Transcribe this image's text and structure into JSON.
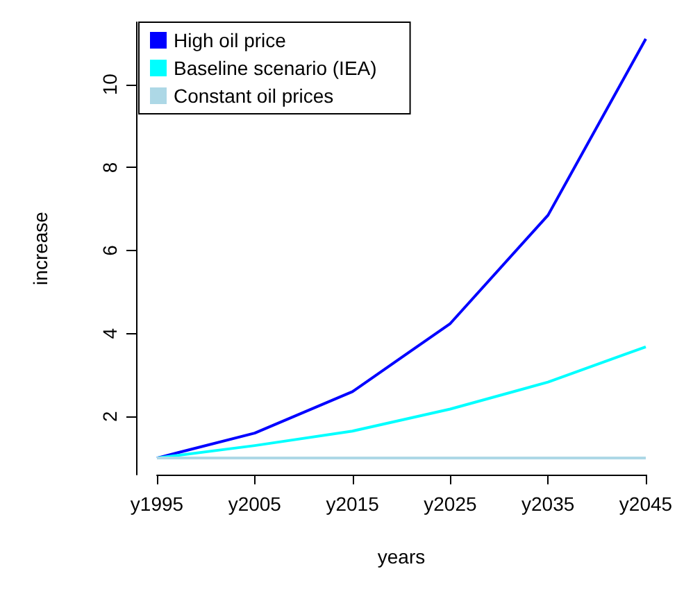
{
  "chart_data": {
    "type": "line",
    "xlabel": "years",
    "ylabel": "increase",
    "categories": [
      "y1995",
      "y2005",
      "y2015",
      "y2025",
      "y2035",
      "y2045"
    ],
    "series": [
      {
        "name": "High oil price",
        "color": "#0000ff",
        "values": [
          1,
          1.6,
          2.6,
          4.24,
          6.85,
          11.1
        ]
      },
      {
        "name": "Baseline scenario (IEA)",
        "color": "#00ffff",
        "values": [
          1,
          1.3,
          1.65,
          2.18,
          2.83,
          3.68
        ]
      },
      {
        "name": "Constant oil prices",
        "color": "#add8e6",
        "values": [
          1,
          1,
          1,
          1,
          1,
          1
        ]
      }
    ],
    "ylim": [
      0.6,
      11.5
    ],
    "yticks": [
      2,
      4,
      6,
      8,
      10
    ],
    "grid": false,
    "legend": "top left",
    "marker": "none",
    "line_style": "solid"
  }
}
